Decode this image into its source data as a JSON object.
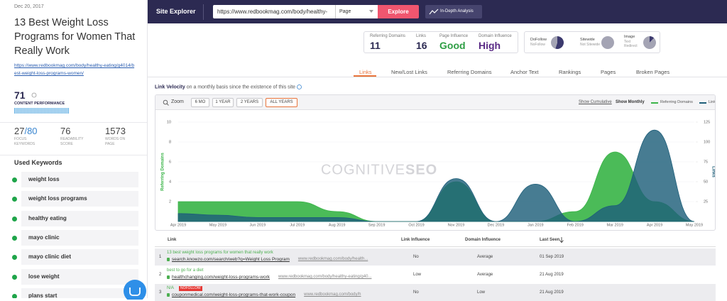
{
  "sidebar": {
    "date": "Dec 20, 2017",
    "title": "13 Best Weight Loss Programs for Women That Really Work",
    "url": "https://www.redbookmag.com/body/healthy-eating/g4014/best-weight-loss-programs-women/",
    "score": "71",
    "score_label": "CONTENT PERFORMANCE",
    "stats": [
      {
        "value": "27",
        "extra": "/80",
        "label": "FOCUS KEYWORDS"
      },
      {
        "value": "76",
        "label": "READABILITY SCORE"
      },
      {
        "value": "1573",
        "label": "WORDS ON PAGE"
      }
    ],
    "keywords_title": "Used Keywords",
    "keywords": [
      "weight loss",
      "weight loss programs",
      "healthy eating",
      "mayo clinic",
      "mayo clinic diet",
      "lose weight",
      "plans start"
    ]
  },
  "topbar": {
    "brand": "Site Explorer",
    "url": "https://www.redbookmag.com/body/healthy-",
    "select": "Page",
    "button": "Explore",
    "analysis": "In-Depth Analysis"
  },
  "metrics": [
    {
      "label": "Referring Domains",
      "value": "11",
      "color": "#2c2a52"
    },
    {
      "label": "Links",
      "value": "16",
      "color": "#2c2a52"
    },
    {
      "label": "Page Influence",
      "value": "Good",
      "color": "#2e9e44"
    },
    {
      "label": "Domain Influence",
      "value": "High",
      "color": "#5a2a86"
    }
  ],
  "pies": [
    {
      "labels": [
        "DoFollow",
        "NoFollow"
      ],
      "values": [
        55,
        45
      ],
      "colors": [
        "#3c3a6e",
        "#a4a4b4"
      ]
    },
    {
      "labels": [
        "Sitewide",
        "Not Sitewide"
      ],
      "values": [
        0,
        100
      ],
      "colors": [
        "#3c3a6e",
        "#a4a4b4"
      ]
    },
    {
      "labels": [
        "Image",
        "Text",
        "Redirect"
      ],
      "values": [
        12,
        88,
        0
      ],
      "colors": [
        "#3c3a6e",
        "#a4a4b4",
        "#6a6a8a"
      ]
    }
  ],
  "tabs": [
    "Links",
    "New/Lost Links",
    "Referring Domains",
    "Anchor Text",
    "Rankings",
    "Pages",
    "Broken Pages"
  ],
  "active_tab": 0,
  "velocity": {
    "title": "Link Velocity",
    "subtitle": "on a monthly basis since the existence of this site"
  },
  "toolbar": {
    "zoom": "Zoom",
    "buttons": [
      "6 MO",
      "1 YEAR",
      "2 YEARS",
      "ALL YEARS"
    ],
    "active": 3,
    "cumulative": "Show Cumulative",
    "monthly": "Show Monthly"
  },
  "chart_data": {
    "type": "area",
    "watermark": [
      "COGNITIVE",
      "SEO"
    ],
    "ylabel": "Referring Domains",
    "y2label": "Links",
    "categories": [
      "Apr 2019",
      "May 2019",
      "Jun 2019",
      "Jul 2019",
      "Aug 2019",
      "Sep 2019",
      "Oct 2019",
      "Nov 2019",
      "Dec 2019",
      "Jan 2019",
      "Feb 2019",
      "Mar 2019",
      "Apr 2019",
      "May 2019"
    ],
    "series": [
      {
        "name": "Referring Domains",
        "color": "#3cb54a",
        "axis": "y",
        "values": [
          2,
          2,
          2,
          2,
          1,
          0,
          0,
          4,
          0,
          0,
          1,
          7,
          2,
          0
        ]
      },
      {
        "name": "Links",
        "color": "#1f5f7a",
        "axis": "y2",
        "values": [
          10,
          8,
          5,
          5,
          5,
          0,
          0,
          54,
          0,
          47,
          0,
          20,
          115,
          0
        ]
      }
    ],
    "ylim": [
      0,
      10
    ],
    "yticks": [
      2,
      4,
      6,
      8,
      10
    ],
    "y2lim": [
      0,
      125
    ],
    "y2ticks": [
      25,
      50,
      75,
      100,
      125
    ],
    "grid": true
  },
  "table": {
    "columns": [
      "Link",
      "Link Influence",
      "Domain Influence",
      "Last Seen"
    ],
    "rows": [
      {
        "num": 1,
        "title": "13 best weight loss programs for women that really work",
        "tag": null,
        "url": "search.knowzo.com/search/web?q=Weight Loss Program",
        "target": "www.redbookmag.com/body/health...",
        "link_influence": "No",
        "domain_influence": "Average",
        "last_seen": "01 Sep 2019"
      },
      {
        "num": 2,
        "title": "best to go for a diet",
        "tag": null,
        "url": "healthchanging.com/weight-loss-programs-work",
        "target": "www.redbookmag.com/body/healthy-eating/g40...",
        "link_influence": "Low",
        "domain_influence": "Average",
        "last_seen": "21 Aug 2019"
      },
      {
        "num": 3,
        "title": "N/A",
        "tag": "NOFOLLOW",
        "url": "couponmedical.com/weight-loss-programs-that-work-coupon",
        "target": "www.redbookmag.com/body/h",
        "link_influence": "No",
        "domain_influence": "Low",
        "last_seen": "21 Aug 2019"
      }
    ]
  }
}
